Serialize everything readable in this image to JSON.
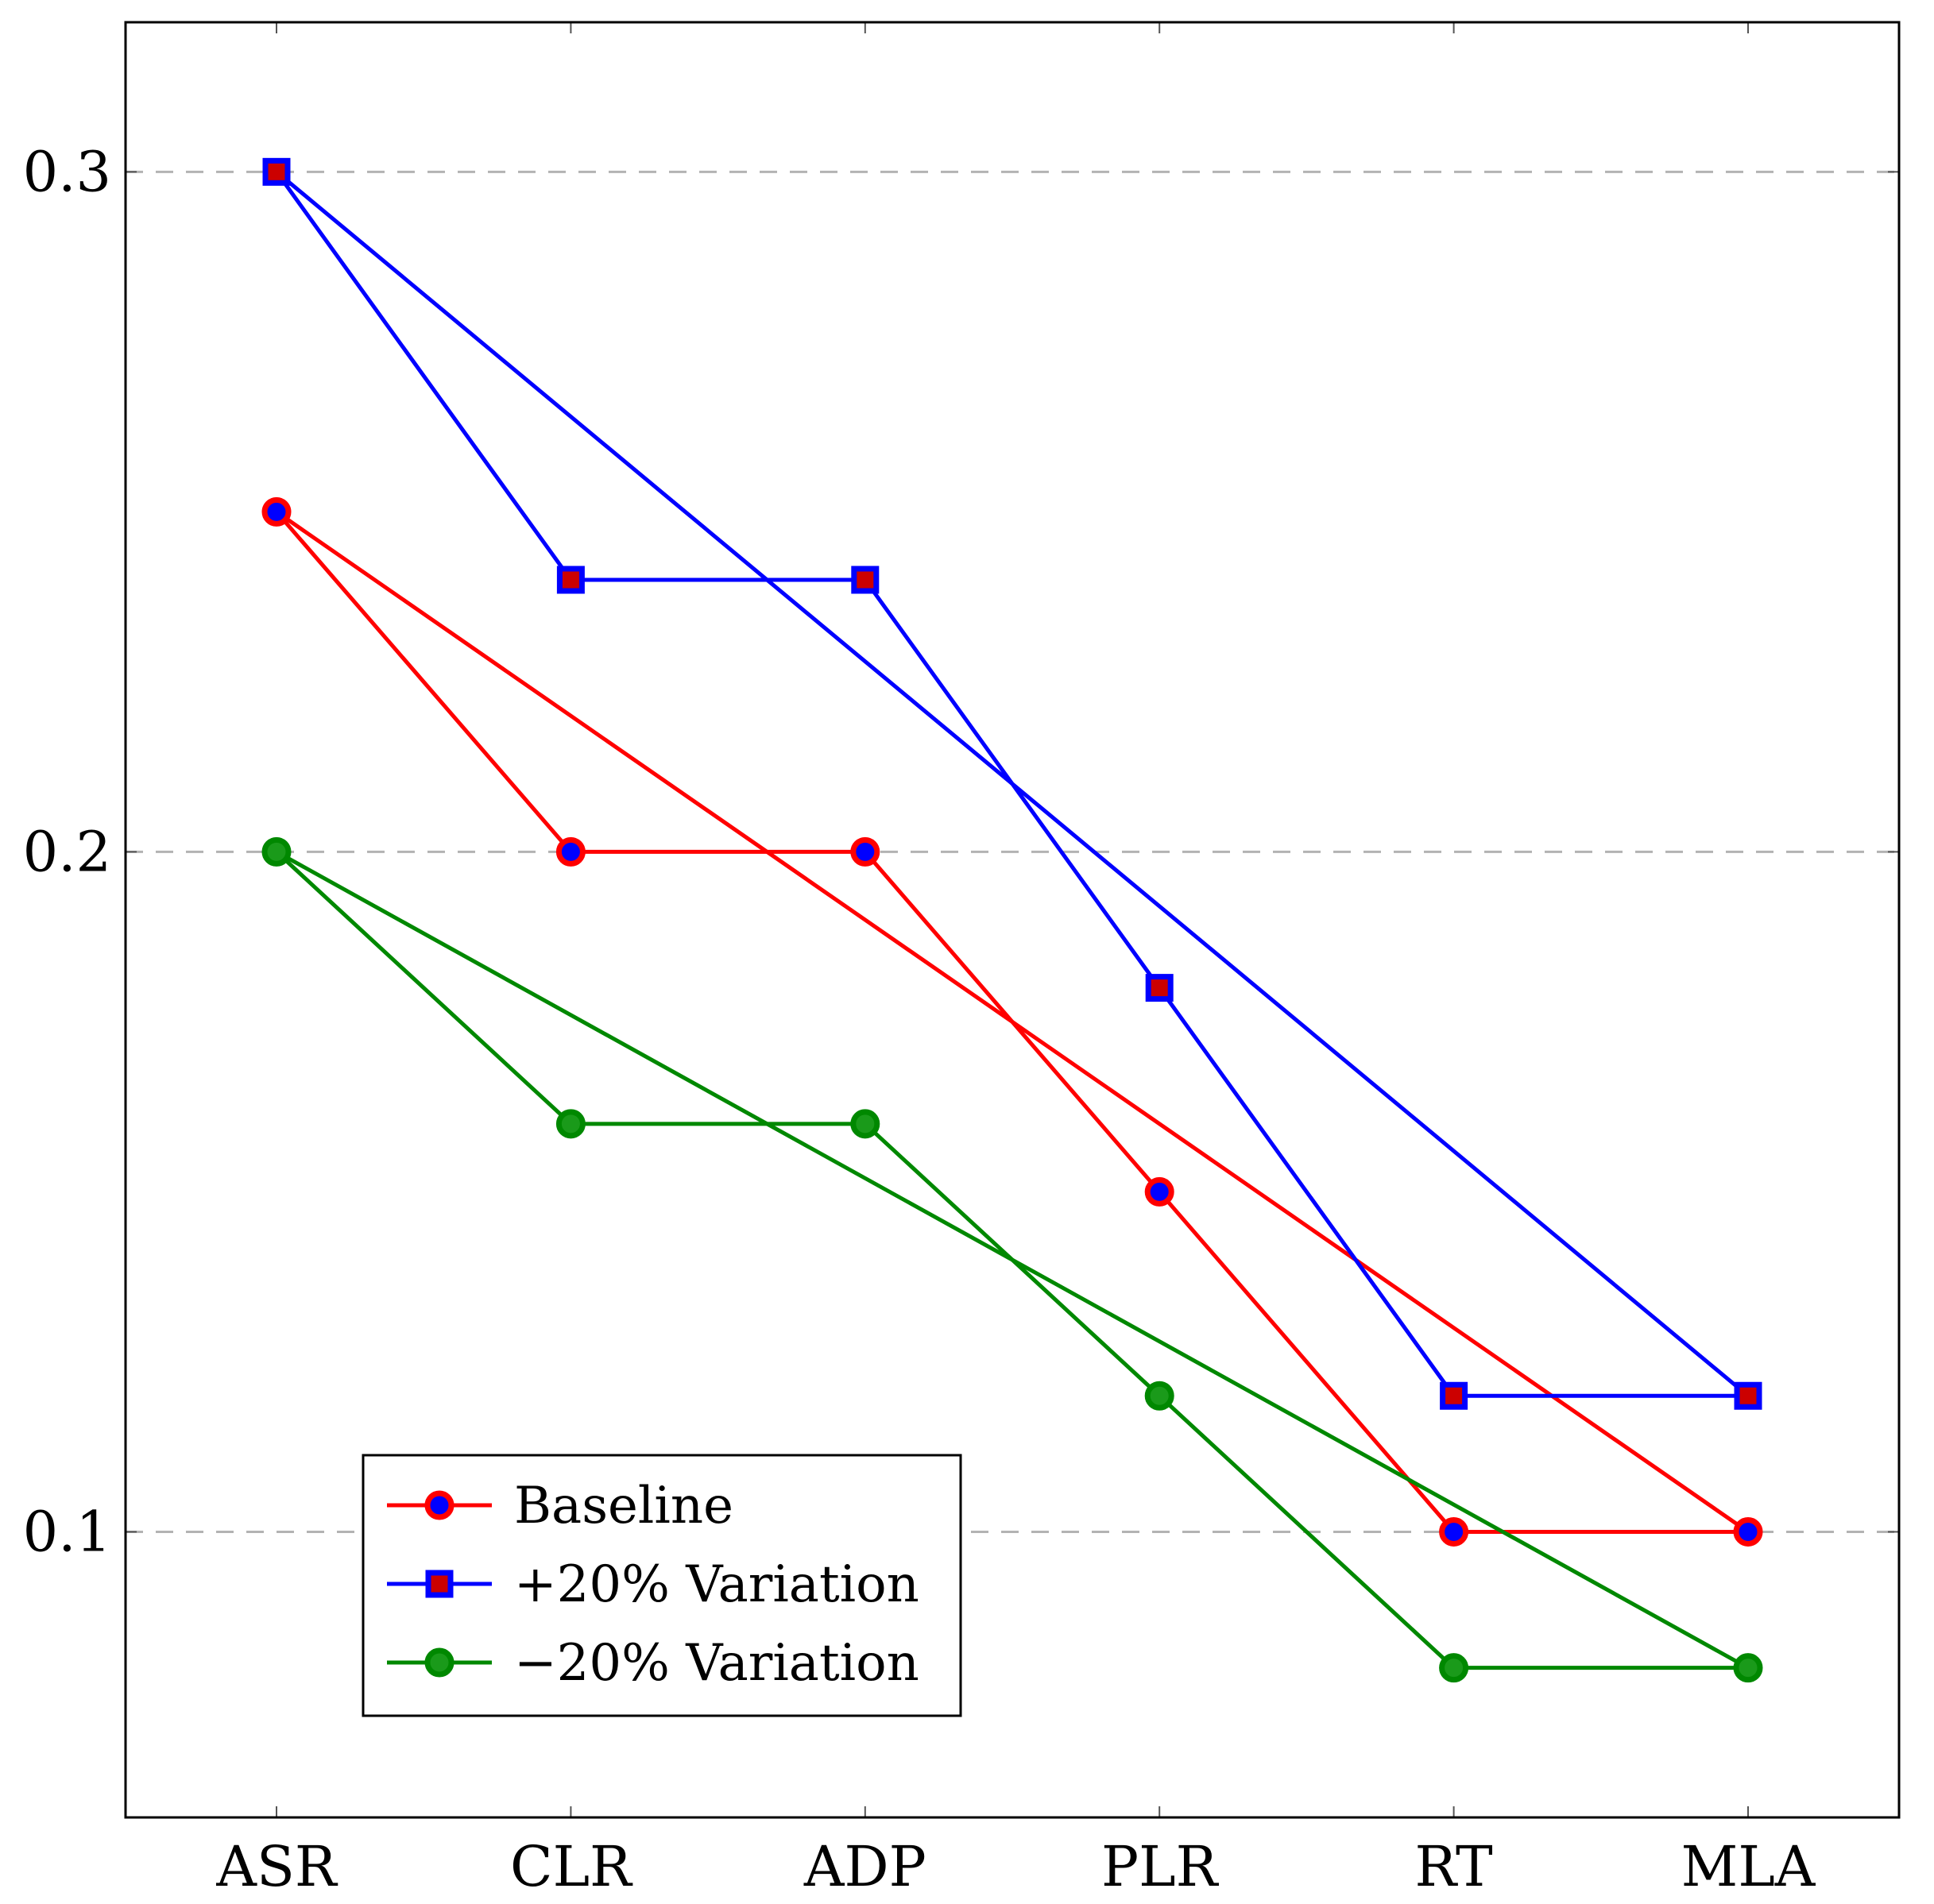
{
  "chart_data": {
    "type": "line",
    "title": "",
    "xlabel": "",
    "ylabel": "",
    "categories": [
      "ASR",
      "CLR",
      "ADP",
      "PLR",
      "RT",
      "MLA"
    ],
    "ylim": [
      0.058,
      0.322
    ],
    "yticks": [
      0.1,
      0.2,
      0.3
    ],
    "ytick_labels": [
      "0.1",
      "0.2",
      "0.3"
    ],
    "grid": "horizontal dashed",
    "legend_position": "bottom-left",
    "series": [
      {
        "name": "Baseline",
        "color": "#ff0000",
        "marker": "circle",
        "marker_fill": "#0000ff",
        "values": [
          0.25,
          0.2,
          0.2,
          0.15,
          0.1,
          0.1
        ]
      },
      {
        "name": "+20% Variation",
        "color": "#0000ff",
        "marker": "square",
        "marker_fill": "#cc0000",
        "values": [
          0.3,
          0.24,
          0.24,
          0.18,
          0.12,
          0.12
        ]
      },
      {
        "name": "−20% Variation",
        "color": "#008800",
        "marker": "circle",
        "marker_fill": "#1a9a1a",
        "values": [
          0.2,
          0.16,
          0.16,
          0.12,
          0.08,
          0.08
        ]
      }
    ]
  }
}
